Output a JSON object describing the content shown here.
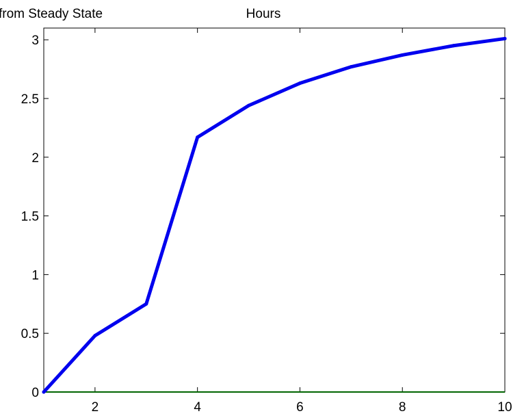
{
  "chart_data": {
    "type": "line",
    "title_left": "from Steady State",
    "title_center": "Hours",
    "xlabel": "",
    "ylabel": "",
    "xlim": [
      1,
      10
    ],
    "ylim": [
      0,
      3.1
    ],
    "xticks": [
      2,
      4,
      6,
      8,
      10
    ],
    "xtick_labels": [
      "2",
      "4",
      "6",
      "8",
      "10"
    ],
    "yticks": [
      0,
      0.5,
      1,
      1.5,
      2,
      2.5,
      3
    ],
    "ytick_labels": [
      "0",
      "0.5",
      "1",
      "1.5",
      "2",
      "2.5",
      "3"
    ],
    "grid": false,
    "series": [
      {
        "color": "#0000ee",
        "x": [
          1,
          2,
          3,
          4,
          5,
          6,
          7,
          8,
          9,
          10
        ],
        "y": [
          0,
          0.48,
          0.75,
          2.17,
          2.44,
          2.63,
          2.77,
          2.87,
          2.95,
          3.01
        ]
      }
    ],
    "baseline_color": "#006400"
  }
}
